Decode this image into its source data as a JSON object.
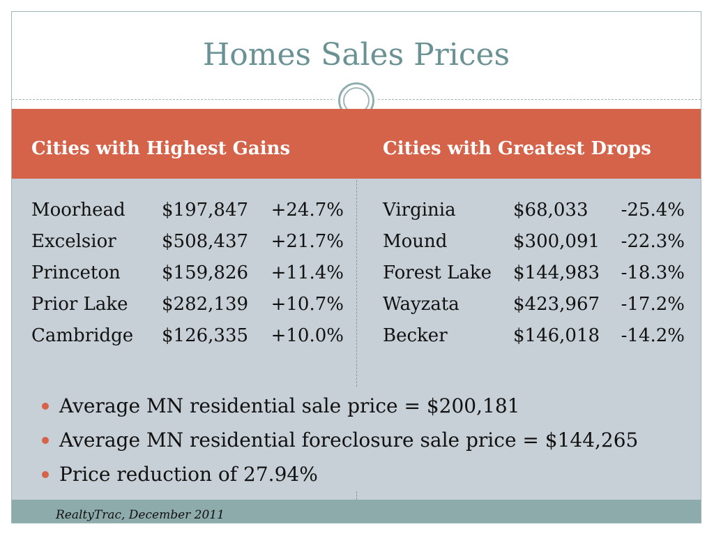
{
  "slide": {
    "title": "Homes Sales Prices"
  },
  "gains": {
    "heading": "Cities with Highest Gains",
    "rows": [
      {
        "city": "Moorhead",
        "price": "$197,847",
        "change": "+24.7%"
      },
      {
        "city": "Excelsior",
        "price": "$508,437",
        "change": "+21.7%"
      },
      {
        "city": "Princeton",
        "price": "$159,826",
        "change": "+11.4%"
      },
      {
        "city": "Prior Lake",
        "price": "$282,139",
        "change": "+10.7%"
      },
      {
        "city": "Cambridge",
        "price": "$126,335",
        "change": "+10.0%"
      }
    ]
  },
  "drops": {
    "heading": "Cities with Greatest Drops",
    "rows": [
      {
        "city": "Virginia",
        "price": "$68,033",
        "change": "-25.4%"
      },
      {
        "city": "Mound",
        "price": "$300,091",
        "change": "-22.3%"
      },
      {
        "city": "Forest Lake",
        "price": "$144,983",
        "change": "-18.3%"
      },
      {
        "city": "Wayzata",
        "price": "$423,967",
        "change": "-17.2%"
      },
      {
        "city": "Becker",
        "price": "$146,018",
        "change": "-14.2%"
      }
    ]
  },
  "bullets": [
    "Average MN residential sale price = $200,181",
    "Average MN residential foreclosure sale price = $144,265",
    "Price reduction of 27.94%"
  ],
  "footer": {
    "source": "RealtyTrac, December 2011"
  },
  "colors": {
    "accent": "#d4634a",
    "title": "#6a9294",
    "body_background": "#c6d0d6",
    "footer_band": "#8eabab"
  }
}
